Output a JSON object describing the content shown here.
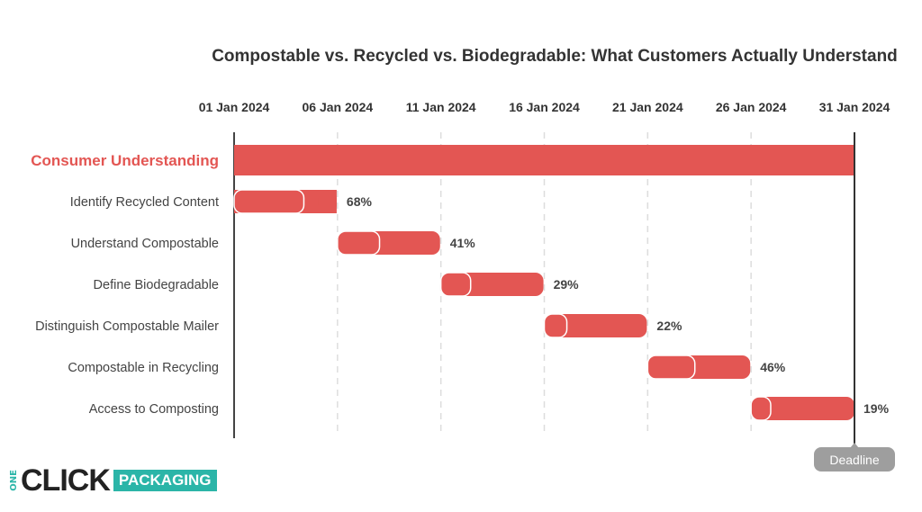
{
  "chart_data": {
    "type": "gantt",
    "title": "Compostable vs. Recycled vs. Biodegradable: What Customers Actually Understand",
    "xlim": [
      "2024-01-01",
      "2024-01-31"
    ],
    "x_ticks": [
      "01 Jan 2024",
      "06 Jan 2024",
      "11 Jan 2024",
      "16 Jan 2024",
      "21 Jan 2024",
      "26 Jan 2024",
      "31 Jan 2024"
    ],
    "grid": "vertical dashed",
    "summary": {
      "name": "Consumer Understanding",
      "start": "2024-01-01",
      "end": "2024-01-31"
    },
    "tasks": [
      {
        "name": "Identify Recycled Content",
        "start": "2024-01-01",
        "end": "2024-01-05",
        "progress": 68,
        "label": "68%"
      },
      {
        "name": "Understand Compostable",
        "start": "2024-01-06",
        "end": "2024-01-10",
        "progress": 41,
        "label": "41%"
      },
      {
        "name": "Define Biodegradable",
        "start": "2024-01-11",
        "end": "2024-01-15",
        "progress": 29,
        "label": "29%"
      },
      {
        "name": "Distinguish Compostable Mailer",
        "start": "2024-01-16",
        "end": "2024-01-20",
        "progress": 22,
        "label": "22%"
      },
      {
        "name": "Compostable in Recycling",
        "start": "2024-01-21",
        "end": "2024-01-25",
        "progress": 46,
        "label": "46%"
      },
      {
        "name": "Access to Composting",
        "start": "2024-01-26",
        "end": "2024-01-31",
        "progress": 19,
        "label": "19%"
      }
    ],
    "deadline": {
      "date": "2024-01-31",
      "label": "Deadline"
    },
    "colors": {
      "bar": "#e35653",
      "summary_label": "#e35653",
      "deadline": "#9e9e9e"
    }
  },
  "logo": {
    "one": "ONE",
    "click": "CLICK",
    "packaging": "PACKAGING"
  }
}
